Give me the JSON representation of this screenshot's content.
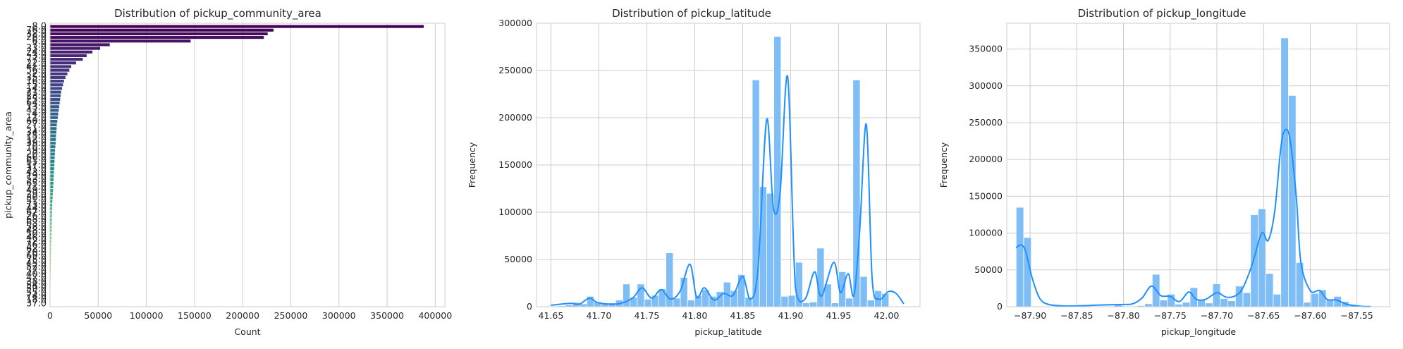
{
  "colors": {
    "hist_fill": "#7fbdf7",
    "hist_edge": "#ffffff",
    "kde_line": "#1e90ff",
    "grid": "#cccccc",
    "bar_palette": "viridis"
  },
  "chart_data": [
    {
      "type": "bar",
      "orientation": "horizontal",
      "title": "Distribution of pickup_community_area",
      "xlabel": "Count",
      "ylabel": "pickup_community_area",
      "xlim": [
        0,
        410000
      ],
      "xticks": [
        0,
        50000,
        100000,
        150000,
        200000,
        250000,
        300000,
        350000,
        400000
      ],
      "grid": "vertical",
      "categories": [
        "8.0",
        "76.0",
        "32.0",
        "28.0",
        "6.0",
        "7.0",
        "33.0",
        "24.0",
        "3.0",
        "77.0",
        "22.0",
        "41.0",
        "56.0",
        "2.0",
        "35.0",
        "16.0",
        "5.0",
        "14.0",
        "21.0",
        "23.0",
        "25.0",
        "64.0",
        "13.0",
        "42.0",
        "4.0",
        "11.0",
        "60.0",
        "27.0",
        "1.0",
        "34.0",
        "15.0",
        "12.0",
        "39.0",
        "10.0",
        "9.0",
        "20.0",
        "66.0",
        "61.0",
        "17.0",
        "31.0",
        "43.0",
        "19.0",
        "53.0",
        "65.0",
        "71.0",
        "49.0",
        "29.0",
        "30.0",
        "51.0",
        "73.0",
        "44.0",
        "67.0",
        "26.0",
        "68.0",
        "63.0",
        "58.0",
        "48.0",
        "50.0",
        "46.0",
        "72.0",
        "36.0",
        "62.0",
        "70.0",
        "69.0",
        "75.0",
        "45.0",
        "52.0",
        "57.0",
        "40.0",
        "47.0",
        "38.0",
        "54.0",
        "59.0",
        "55.0",
        "74.0",
        "18.0",
        "37.0"
      ],
      "values": [
        388000,
        232000,
        226000,
        222000,
        146000,
        62000,
        52000,
        44000,
        38000,
        34000,
        27000,
        22000,
        20000,
        18000,
        16000,
        14500,
        13500,
        12500,
        11500,
        11000,
        10500,
        10000,
        9500,
        9000,
        8500,
        8000,
        7500,
        7000,
        6800,
        6500,
        6200,
        6000,
        5800,
        5500,
        5200,
        5000,
        4800,
        4600,
        4400,
        4200,
        4000,
        3800,
        3600,
        3400,
        3200,
        3000,
        2800,
        2600,
        2400,
        2200,
        2000,
        1900,
        1800,
        1700,
        1600,
        1500,
        1400,
        1300,
        1200,
        1100,
        1000,
        900,
        850,
        800,
        750,
        700,
        650,
        600,
        550,
        500,
        450,
        400,
        350,
        300,
        250,
        200,
        150
      ]
    },
    {
      "type": "histogram",
      "title": "Distribution of pickup_latitude",
      "xlabel": "pickup_latitude",
      "ylabel": "Frequency",
      "xlim": [
        41.635,
        42.035
      ],
      "ylim": [
        0,
        300000
      ],
      "xticks": [
        "41.65",
        "41.70",
        "41.75",
        "41.80",
        "41.85",
        "41.90",
        "41.95",
        "42.00"
      ],
      "yticks": [
        0,
        50000,
        100000,
        150000,
        200000,
        250000,
        300000
      ],
      "bin_start": 41.65,
      "bin_width": 0.0075,
      "counts": [
        700,
        1000,
        2000,
        4500,
        3000,
        11000,
        5000,
        3500,
        4000,
        7000,
        24000,
        10000,
        24000,
        8000,
        12000,
        19000,
        57000,
        9000,
        31000,
        7000,
        12000,
        18000,
        11000,
        16000,
        26000,
        17000,
        34000,
        10000,
        240000,
        127000,
        120000,
        286000,
        11000,
        12000,
        47000,
        4000,
        5000,
        62000,
        24000,
        4000,
        37000,
        9000,
        240000,
        32000,
        7000,
        17000,
        14000
      ],
      "kde": [
        [
          41.65,
          1500
        ],
        [
          41.67,
          3500
        ],
        [
          41.68,
          2800
        ],
        [
          41.69,
          9000
        ],
        [
          41.7,
          4000
        ],
        [
          41.72,
          3000
        ],
        [
          41.735,
          9000
        ],
        [
          41.745,
          20000
        ],
        [
          41.755,
          9000
        ],
        [
          41.765,
          18000
        ],
        [
          41.775,
          8000
        ],
        [
          41.785,
          17000
        ],
        [
          41.795,
          45000
        ],
        [
          41.802,
          10000
        ],
        [
          41.81,
          20000
        ],
        [
          41.82,
          7000
        ],
        [
          41.83,
          14000
        ],
        [
          41.84,
          12000
        ],
        [
          41.85,
          32000
        ],
        [
          41.858,
          8000
        ],
        [
          41.866,
          40000
        ],
        [
          41.875,
          198000
        ],
        [
          41.882,
          105000
        ],
        [
          41.889,
          120000
        ],
        [
          41.897,
          243000
        ],
        [
          41.905,
          20000
        ],
        [
          41.915,
          8000
        ],
        [
          41.925,
          37000
        ],
        [
          41.932,
          11000
        ],
        [
          41.945,
          47000
        ],
        [
          41.952,
          15000
        ],
        [
          41.96,
          35000
        ],
        [
          41.966,
          12000
        ],
        [
          41.972,
          80000
        ],
        [
          41.979,
          193000
        ],
        [
          41.985,
          30000
        ],
        [
          41.992,
          8000
        ],
        [
          42.002,
          16000
        ],
        [
          42.01,
          14000
        ],
        [
          42.018,
          3000
        ]
      ]
    },
    {
      "type": "histogram",
      "title": "Distribution of pickup_longitude",
      "xlabel": "pickup_longitude",
      "ylabel": "Frequency",
      "xlim": [
        -87.925,
        -87.515
      ],
      "ylim": [
        0,
        385000
      ],
      "xticks": [
        "−87.90",
        "−87.85",
        "−87.80",
        "−87.75",
        "−87.70",
        "−87.65",
        "−87.60",
        "−87.55"
      ],
      "yticks": [
        0,
        50000,
        100000,
        150000,
        200000,
        250000,
        300000,
        350000
      ],
      "bin_start": -87.915,
      "bin_width": 0.0081,
      "counts": [
        135000,
        94000,
        0,
        0,
        0,
        0,
        0,
        0,
        0,
        0,
        0,
        0,
        0,
        3000,
        0,
        0,
        1500,
        4000,
        44000,
        9000,
        17000,
        3500,
        6000,
        26000,
        9000,
        5000,
        31000,
        11000,
        8000,
        28000,
        19000,
        125000,
        133000,
        45000,
        17000,
        365000,
        287000,
        60000,
        6000,
        18000,
        23000,
        10000,
        14000,
        7000,
        3000
      ],
      "kde": [
        [
          -87.915,
          80000
        ],
        [
          -87.91,
          84000
        ],
        [
          -87.905,
          76000
        ],
        [
          -87.898,
          40000
        ],
        [
          -87.89,
          12000
        ],
        [
          -87.88,
          3000
        ],
        [
          -87.86,
          1000
        ],
        [
          -87.84,
          1500
        ],
        [
          -87.82,
          2500
        ],
        [
          -87.8,
          3000
        ],
        [
          -87.79,
          4000
        ],
        [
          -87.78,
          12000
        ],
        [
          -87.77,
          28000
        ],
        [
          -87.76,
          15000
        ],
        [
          -87.75,
          14000
        ],
        [
          -87.74,
          7000
        ],
        [
          -87.73,
          20000
        ],
        [
          -87.722,
          10000
        ],
        [
          -87.712,
          10000
        ],
        [
          -87.7,
          19000
        ],
        [
          -87.69,
          13000
        ],
        [
          -87.68,
          15000
        ],
        [
          -87.672,
          26000
        ],
        [
          -87.662,
          58000
        ],
        [
          -87.652,
          100000
        ],
        [
          -87.645,
          90000
        ],
        [
          -87.638,
          130000
        ],
        [
          -87.632,
          210000
        ],
        [
          -87.628,
          238000
        ],
        [
          -87.622,
          230000
        ],
        [
          -87.615,
          150000
        ],
        [
          -87.61,
          60000
        ],
        [
          -87.6,
          22000
        ],
        [
          -87.59,
          22000
        ],
        [
          -87.582,
          10000
        ],
        [
          -87.572,
          9000
        ],
        [
          -87.56,
          3000
        ],
        [
          -87.545,
          500
        ],
        [
          -87.535,
          200
        ]
      ]
    }
  ]
}
